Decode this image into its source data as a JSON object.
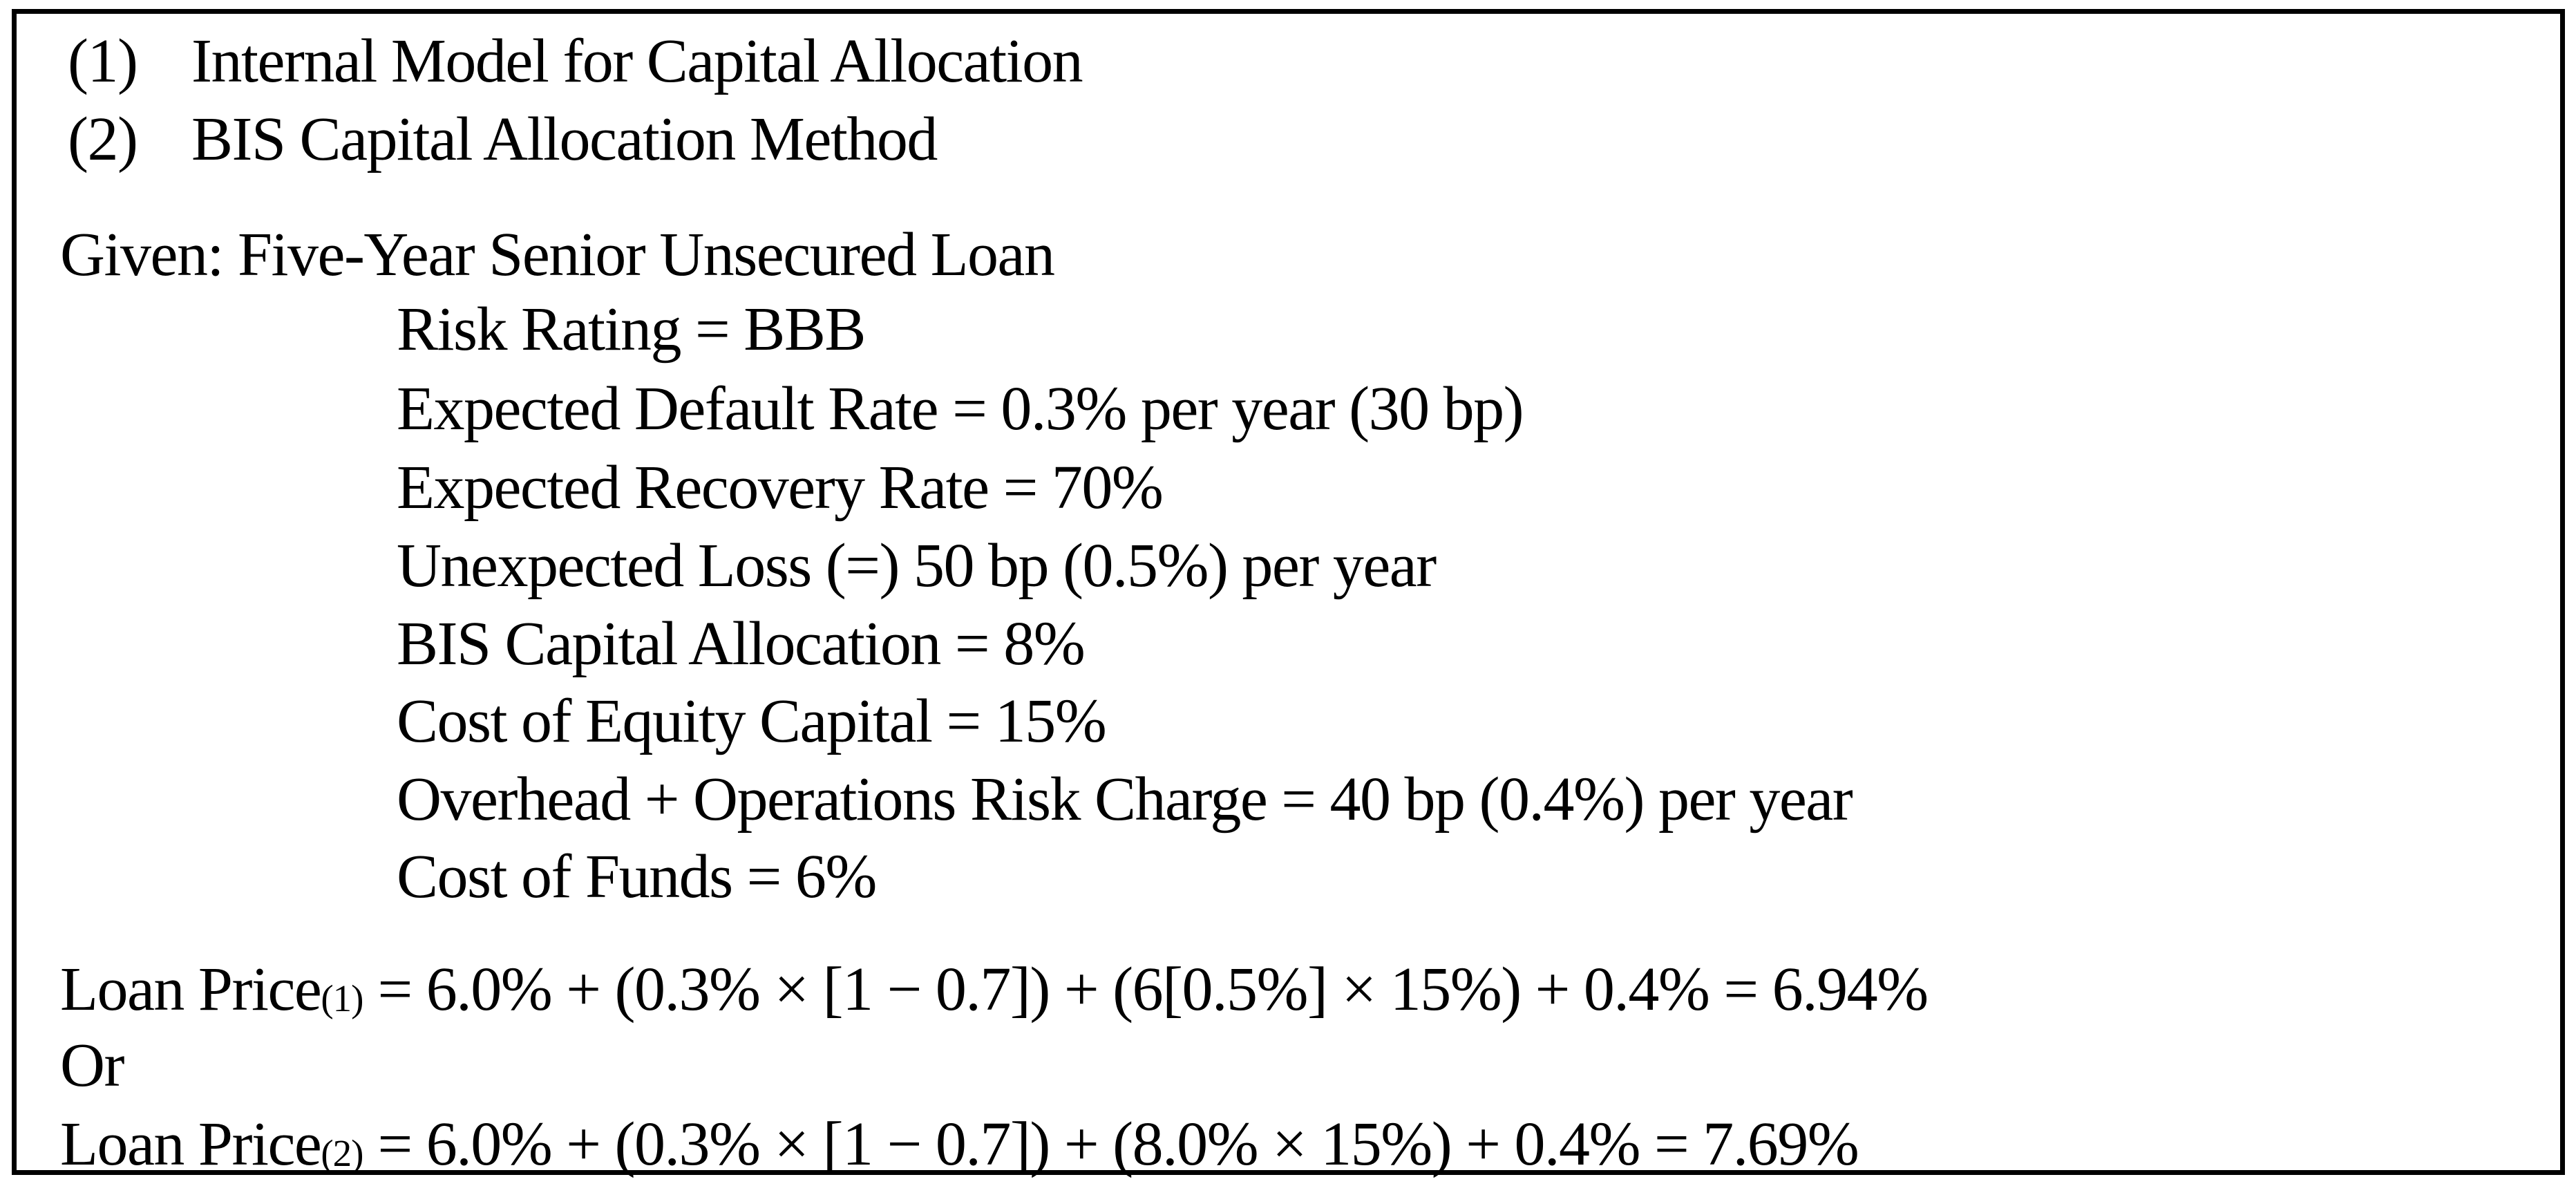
{
  "page": {
    "background_color": "#ffffff",
    "text_color": "#000000",
    "border_color": "#000000"
  },
  "document": {
    "numbered_methods": [
      {
        "number": "(1)",
        "label": "Internal Model for Capital Allocation"
      },
      {
        "number": "(2)",
        "label": "BIS Capital Allocation Method"
      }
    ],
    "given_heading": "Given: Five-Year Senior Unsecured Loan",
    "given_parameters": [
      "Risk Rating = BBB",
      "Expected Default Rate = 0.3% per year (30 bp)",
      "Expected Recovery Rate = 70%",
      "Unexpected Loss (=) 50 bp (0.5%) per year",
      "BIS Capital Allocation = 8%",
      "Cost of Equity Capital = 15%",
      "Overhead + Operations Risk Charge = 40 bp (0.4%) per year",
      "Cost of Funds = 6%"
    ],
    "loan_price_1": {
      "prefix": "Loan Price",
      "subscript": "(1)",
      "expression": " = 6.0% + (0.3% × [1 − 0.7]) + (6[0.5%] × 15%) + 0.4% = 6.94%"
    },
    "or_label": "Or",
    "loan_price_2": {
      "prefix": "Loan Price",
      "subscript": "(2)",
      "expression": " = 6.0% + (0.3% × [1 − 0.7]) + (8.0% × 15%) + 0.4% = 7.69%"
    }
  }
}
